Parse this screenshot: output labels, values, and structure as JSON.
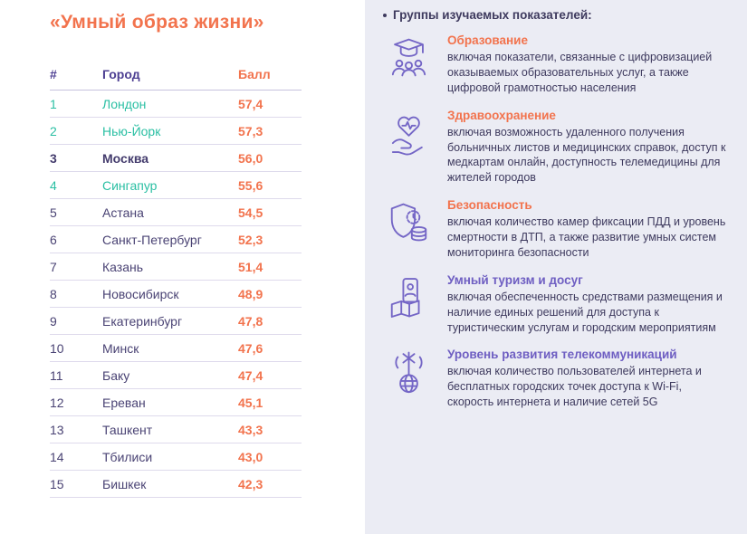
{
  "colors": {
    "accent_orange": "#f2734d",
    "accent_teal": "#2abfa3",
    "accent_violet": "#6e5ec2",
    "text_purple": "#4a4374",
    "panel_background": "#ebecf4",
    "icon_purple": "#7466c6"
  },
  "left_panel": {
    "title": "«Умный образ жизни»",
    "table": {
      "headers": {
        "rank": "#",
        "city": "Город",
        "score": "Балл"
      },
      "rows": [
        {
          "rank": "1",
          "city": "Лондон",
          "score": "57,4",
          "highlight": "teal"
        },
        {
          "rank": "2",
          "city": "Нью-Йорк",
          "score": "57,3",
          "highlight": "teal"
        },
        {
          "rank": "3",
          "city": "Москва",
          "score": "56,0",
          "highlight": "bold"
        },
        {
          "rank": "4",
          "city": "Сингапур",
          "score": "55,6",
          "highlight": "teal"
        },
        {
          "rank": "5",
          "city": "Астана",
          "score": "54,5",
          "highlight": "none"
        },
        {
          "rank": "6",
          "city": "Санкт-Петербург",
          "score": "52,3",
          "highlight": "none"
        },
        {
          "rank": "7",
          "city": "Казань",
          "score": "51,4",
          "highlight": "none"
        },
        {
          "rank": "8",
          "city": "Новосибирск",
          "score": "48,9",
          "highlight": "none"
        },
        {
          "rank": "9",
          "city": "Екатеринбург",
          "score": "47,8",
          "highlight": "none"
        },
        {
          "rank": "10",
          "city": "Минск",
          "score": "47,6",
          "highlight": "none"
        },
        {
          "rank": "11",
          "city": "Баку",
          "score": "47,4",
          "highlight": "none"
        },
        {
          "rank": "12",
          "city": "Ереван",
          "score": "45,1",
          "highlight": "none"
        },
        {
          "rank": "13",
          "city": "Ташкент",
          "score": "43,3",
          "highlight": "none"
        },
        {
          "rank": "14",
          "city": "Тбилиси",
          "score": "43,0",
          "highlight": "none"
        },
        {
          "rank": "15",
          "city": "Бишкек",
          "score": "42,3",
          "highlight": "none"
        }
      ]
    }
  },
  "right_panel": {
    "header": "Группы изучаемых показателей:",
    "groups": [
      {
        "icon": "education-icon",
        "title": "Образование",
        "title_color": "orange",
        "text": "включая показатели, связанные с цифровизацией оказываемых образовательных услуг, а также цифровой грамотностью населения"
      },
      {
        "icon": "healthcare-icon",
        "title": "Здравоохранение",
        "title_color": "orange",
        "text": "включая возможность удаленного получения больничных листов и медицинских справок, доступ к медкартам онлайн, доступность телемедицины для жителей городов"
      },
      {
        "icon": "security-icon",
        "title": "Безопасность",
        "title_color": "orange",
        "text": "включая количество камер фиксации ПДД и уровень смертности в ДТП, а также развитие умных систем мониторинга безопасности"
      },
      {
        "icon": "tourism-icon",
        "title": "Умный туризм и досуг",
        "title_color": "violet",
        "text": "включая обеспеченность средствами размещения и наличие единых решений для доступа к туристическим услугам и городским мероприятиям"
      },
      {
        "icon": "telecom-icon",
        "title": "Уровень развития телекоммуникаций",
        "title_color": "violet",
        "text": "включая количество пользователей интернета и бесплатных городских точек доступа к Wi-Fi, скорость интернета и наличие сетей 5G"
      }
    ]
  }
}
